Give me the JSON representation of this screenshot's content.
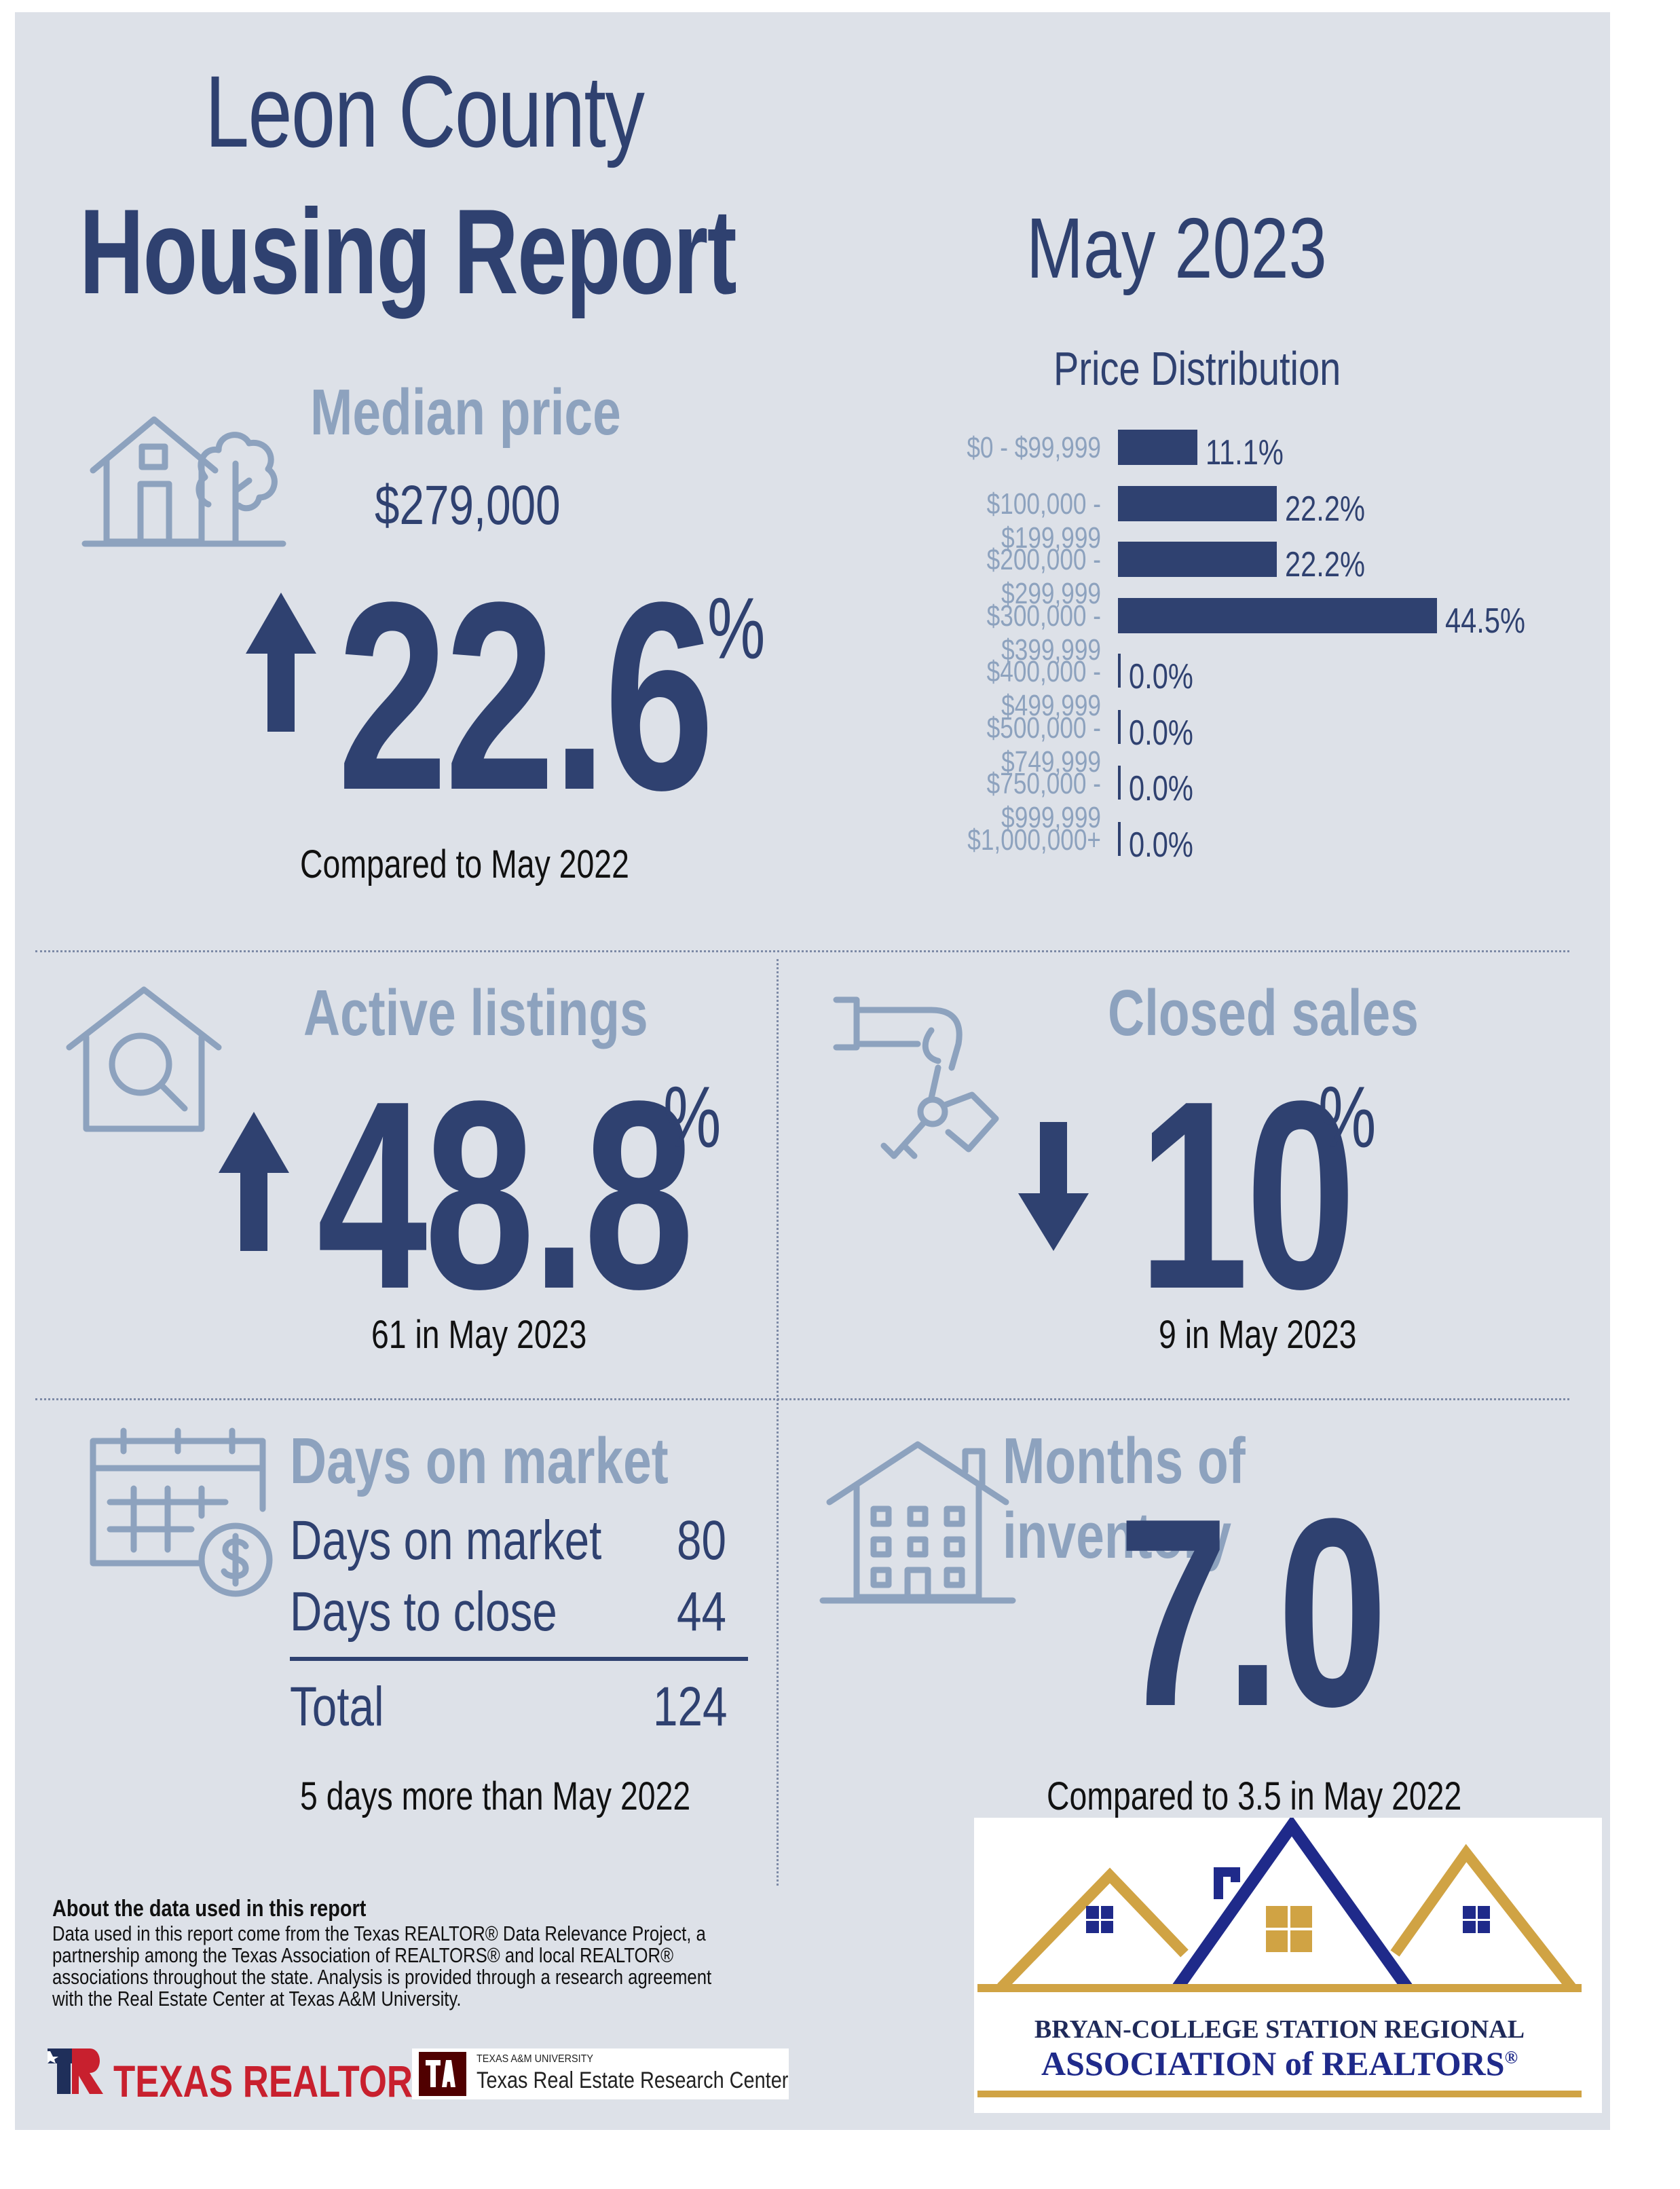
{
  "header": {
    "title_line1": "Leon County",
    "title_line2": "Housing Report",
    "period": "May 2023"
  },
  "median_price": {
    "label": "Median price",
    "value": "$279,000",
    "change_pct": "22.6",
    "pct_sign": "%",
    "direction": "up",
    "caption": "Compared to May 2022"
  },
  "price_distribution": {
    "title": "Price Distribution",
    "chart_data": {
      "type": "bar",
      "orientation": "horizontal",
      "title": "Price Distribution",
      "categories": [
        "$0 - $99,999",
        "$100,000 - $199,999",
        "$200,000 - $299,999",
        "$300,000 - $399,999",
        "$400,000 - $499,999",
        "$500,000 - $749,999",
        "$750,000 - $999,999",
        "$1,000,000+"
      ],
      "values": [
        11.1,
        22.2,
        22.2,
        44.5,
        0.0,
        0.0,
        0.0,
        0.0
      ],
      "value_labels": [
        "11.1%",
        "22.2%",
        "22.2%",
        "44.5%",
        "0.0%",
        "0.0%",
        "0.0%",
        "0.0%"
      ],
      "xlim": [
        0,
        50
      ],
      "color": "#2f4170"
    }
  },
  "active_listings": {
    "label": "Active listings",
    "change_pct": "48.8",
    "pct_sign": "%",
    "direction": "up",
    "caption": "61 in May 2023"
  },
  "closed_sales": {
    "label": "Closed sales",
    "change_pct": "10",
    "pct_sign": "%",
    "direction": "down",
    "caption": "9 in May 2023"
  },
  "days_on_market": {
    "label": "Days on market",
    "rows": [
      {
        "name": "Days on market",
        "value": "80"
      },
      {
        "name": "Days to close",
        "value": "44"
      }
    ],
    "total_label": "Total",
    "total_value": "124",
    "caption": "5 days more than May 2022"
  },
  "months_inventory": {
    "label": "Months of inventory",
    "value": "7.0",
    "caption": "Compared to 3.5 in May 2022"
  },
  "notes": {
    "heading": "About the data used in this report",
    "body": "Data used in this report come from the Texas REALTOR® Data Relevance Project, a partnership among the Texas Association of REALTORS® and local REALTOR® associations throughout the state. Analysis is provided through a research agreement with the Real Estate Center at Texas A&M University."
  },
  "footer": {
    "texas_realtors": "TEXAS REALTORS",
    "tamu_small": "TEXAS A&M UNIVERSITY",
    "tamu_center": "Texas Real Estate Research Center",
    "assoc_line1": "BRYAN-COLLEGE STATION REGIONAL",
    "assoc_line2": "ASSOCIATION of REALTORS",
    "assoc_reg": "®"
  },
  "colors": {
    "navy": "#2f4170",
    "steel": "#8da2be",
    "background": "#dde1e8",
    "gold": "#d0a344"
  },
  "icons": [
    "house-tree-icon",
    "house-search-icon",
    "hand-key-icon",
    "calendar-dollar-icon",
    "apartment-icon",
    "up-arrow-icon",
    "down-arrow-icon"
  ]
}
